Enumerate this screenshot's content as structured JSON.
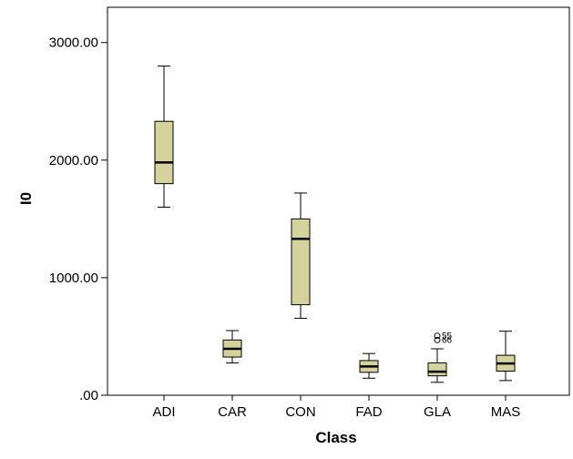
{
  "chart_data": {
    "type": "boxplot",
    "xlabel": "Class",
    "ylabel": "I0",
    "ylim": [
      0,
      3300
    ],
    "yticks": [
      0,
      1000,
      2000,
      3000
    ],
    "ytick_labels": [
      ".00",
      "1000.00",
      "2000.00",
      "3000.00"
    ],
    "categories": [
      "ADI",
      "CAR",
      "CON",
      "FAD",
      "GLA",
      "MAS"
    ],
    "box_color": "#d6d29d",
    "series": [
      {
        "category": "ADI",
        "min": 1600,
        "q1": 1800,
        "median": 1980,
        "q3": 2330,
        "max": 2800,
        "outliers": []
      },
      {
        "category": "CAR",
        "min": 275,
        "q1": 325,
        "median": 395,
        "q3": 470,
        "max": 550,
        "outliers": []
      },
      {
        "category": "CON",
        "min": 655,
        "q1": 770,
        "median": 1330,
        "q3": 1500,
        "max": 1720,
        "outliers": []
      },
      {
        "category": "FAD",
        "min": 145,
        "q1": 195,
        "median": 245,
        "q3": 295,
        "max": 355,
        "outliers": []
      },
      {
        "category": "GLA",
        "min": 110,
        "q1": 165,
        "median": 200,
        "q3": 275,
        "max": 395,
        "outliers": [
          {
            "value": 505,
            "label": "55"
          },
          {
            "value": 470,
            "label": "66"
          }
        ]
      },
      {
        "category": "MAS",
        "min": 125,
        "q1": 205,
        "median": 270,
        "q3": 340,
        "max": 545,
        "outliers": []
      }
    ]
  }
}
